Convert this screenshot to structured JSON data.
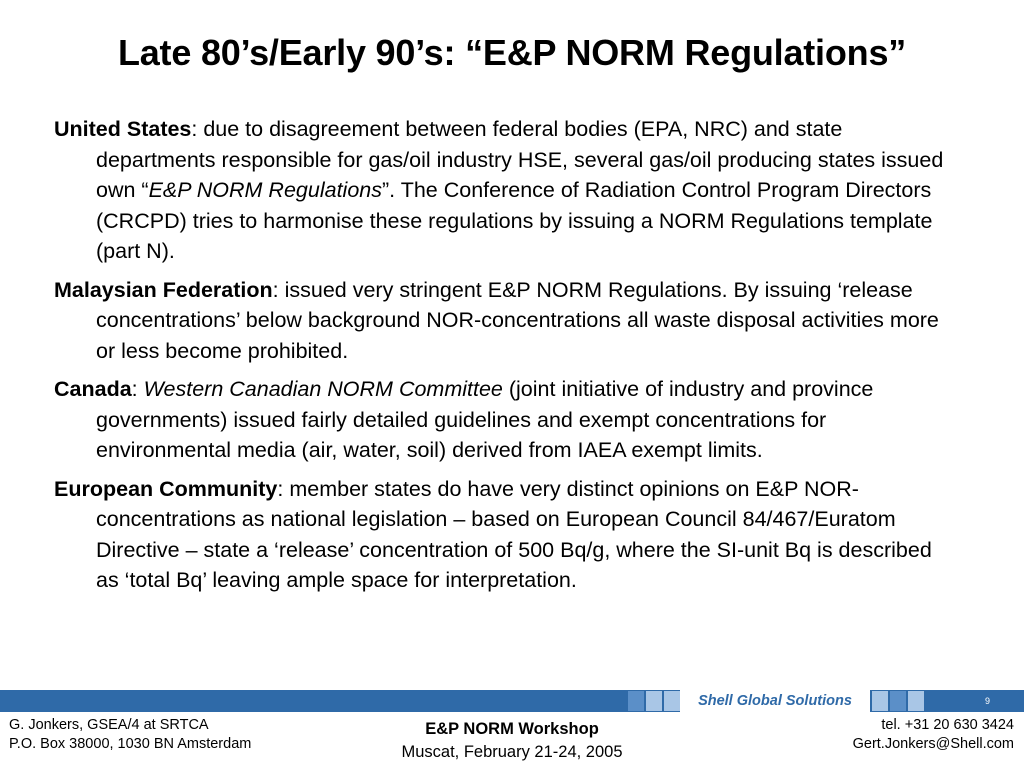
{
  "slide": {
    "title": "Late 80’s/Early 90’s: “E&P NORM Regulations”"
  },
  "paragraphs": {
    "us": {
      "label": "United States",
      "t1": ": due to disagreement between federal bodies (EPA, NRC) and state departments responsible for gas/oil industry HSE, several gas/oil producing states issued own “",
      "em": "E&P NORM Regulations",
      "t2": "”. The Conference of Radiation Control Program Directors (CRCPD) tries to harmonise these regulations by issuing a NORM Regulations template (part N)."
    },
    "malaysia": {
      "label": "Malaysian Federation",
      "t1": ": issued very stringent E&P NORM Regulations. By issuing ‘release concentrations’ below background NOR-concentrations all waste disposal activities more or less become prohibited."
    },
    "canada": {
      "label": "Canada",
      "t1": ": ",
      "em": "Western Canadian NORM Committee",
      "t2": " (joint initiative of industry and province governments) issued fairly detailed guidelines and exempt concentrations for environmental media (air, water, soil) derived from IAEA exempt limits."
    },
    "ec": {
      "label": "European Community",
      "t1": ": member states do have very distinct opinions on E&P NOR-concentrations as national legislation – based on European Council 84/467/Euratom Directive – state a ‘release’ concentration of 500 Bq/g, where the SI-unit Bq is described as ‘total Bq’ leaving ample space for interpretation."
    }
  },
  "footer": {
    "brand": "Shell Global Solutions",
    "page_number": "9",
    "left_line1": "G. Jonkers, GSEA/4 at SRTCA",
    "left_line2": "P.O. Box 38000, 1030 BN Amsterdam",
    "center_line1": "E&P NORM Workshop",
    "center_line2": "Muscat, February 21-24, 2005",
    "right_line1": "tel. +31 20 630 3424",
    "right_line2": "Gert.Jonkers@Shell.com"
  },
  "colors": {
    "bar": "#2f6aa8",
    "square_dark": "#5b8fc8",
    "square_light": "#a9c6e6"
  }
}
